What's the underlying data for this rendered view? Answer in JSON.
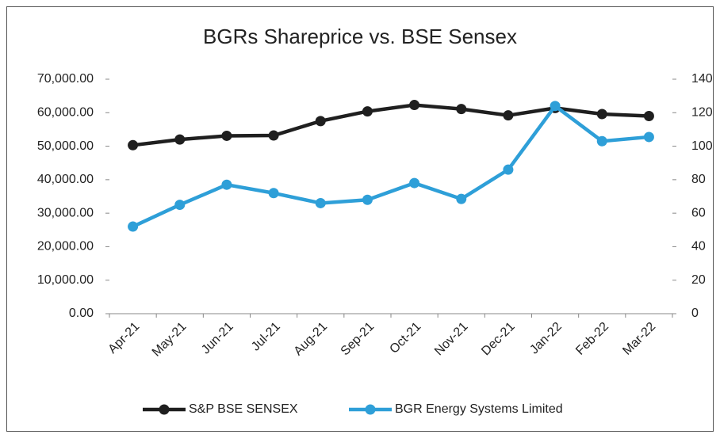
{
  "chart_data": {
    "type": "line",
    "title": "BGRs Shareprice vs. BSE Sensex",
    "categories": [
      "Apr-21",
      "May-21",
      "Jun-21",
      "Jul-21",
      "Aug-21",
      "Sep-21",
      "Oct-21",
      "Nov-21",
      "Dec-21",
      "Jan-22",
      "Feb-22",
      "Mar-22"
    ],
    "series": [
      {
        "name": "S&P BSE SENSEX",
        "color": "#1f1f1f",
        "values": [
          50300,
          52000,
          53100,
          53200,
          57500,
          60400,
          62300,
          61100,
          59200,
          61400,
          59600,
          59000
        ]
      },
      {
        "name": "BGR Energy Systems Limited",
        "color": "#2e9fd8",
        "axis": "y2",
        "values": [
          52,
          65,
          77,
          72,
          66,
          68,
          78,
          68.5,
          86,
          124,
          103,
          105.5
        ]
      }
    ],
    "ylim": [
      0,
      70000
    ],
    "yticks": [
      {
        "value": 0,
        "label": "0.00"
      },
      {
        "value": 10000,
        "label": "10,000.00"
      },
      {
        "value": 20000,
        "label": "20,000.00"
      },
      {
        "value": 30000,
        "label": "30,000.00"
      },
      {
        "value": 40000,
        "label": "40,000.00"
      },
      {
        "value": 50000,
        "label": "50,000.00"
      },
      {
        "value": 60000,
        "label": "60,000.00"
      },
      {
        "value": 70000,
        "label": "70,000.00"
      }
    ],
    "y2lim": [
      0,
      140
    ],
    "y2ticks": [
      0,
      20,
      40,
      60,
      80,
      100,
      120,
      140
    ],
    "legend": "bottom"
  }
}
